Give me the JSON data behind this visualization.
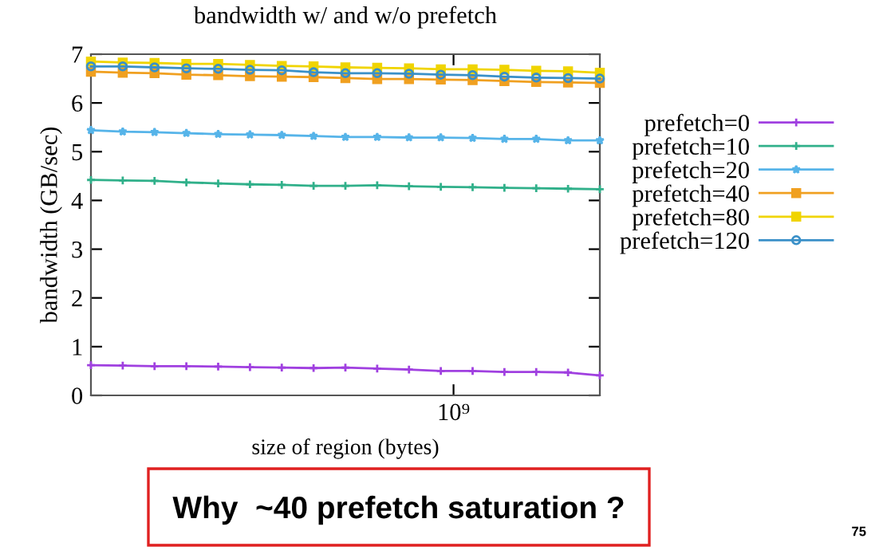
{
  "chart_data": {
    "type": "line",
    "title": "bandwidth w/ and w/o prefetch",
    "xlabel": "size of region (bytes)",
    "ylabel": "bandwidth (GB/sec)",
    "categories": [
      null,
      null,
      null,
      null,
      null,
      null,
      null,
      null,
      null,
      null,
      null,
      null,
      null,
      null,
      null,
      null,
      null
    ],
    "ylim": [
      0,
      7
    ],
    "yticks": [
      0,
      1,
      2,
      3,
      4,
      5,
      6,
      7
    ],
    "grid": false,
    "legend": "right",
    "line_style": "solid",
    "series": [
      {
        "name": "prefetch=0",
        "color": "#a040e0",
        "marker": "cross",
        "values": [
          0.62,
          0.61,
          0.6,
          0.6,
          0.59,
          0.58,
          0.57,
          0.56,
          0.57,
          0.55,
          0.53,
          0.5,
          0.5,
          0.48,
          0.48,
          0.47,
          0.41
        ]
      },
      {
        "name": "prefetch=10",
        "color": "#30b08a",
        "marker": "cross",
        "values": [
          4.42,
          4.41,
          4.4,
          4.37,
          4.35,
          4.33,
          4.32,
          4.3,
          4.3,
          4.31,
          4.29,
          4.28,
          4.27,
          4.26,
          4.25,
          4.24,
          4.23
        ]
      },
      {
        "name": "prefetch=20",
        "color": "#56b4e9",
        "marker": "star",
        "values": [
          5.44,
          5.41,
          5.4,
          5.38,
          5.36,
          5.35,
          5.34,
          5.32,
          5.3,
          5.3,
          5.29,
          5.29,
          5.28,
          5.26,
          5.26,
          5.23,
          5.23
        ]
      },
      {
        "name": "prefetch=40",
        "color": "#f0a020",
        "marker": "square",
        "values": [
          6.64,
          6.62,
          6.61,
          6.58,
          6.57,
          6.55,
          6.54,
          6.53,
          6.51,
          6.49,
          6.49,
          6.48,
          6.47,
          6.45,
          6.43,
          6.42,
          6.41
        ]
      },
      {
        "name": "prefetch=80",
        "color": "#f0d400",
        "marker": "square",
        "values": [
          6.85,
          6.83,
          6.82,
          6.8,
          6.8,
          6.78,
          6.76,
          6.75,
          6.73,
          6.72,
          6.71,
          6.69,
          6.69,
          6.68,
          6.66,
          6.65,
          6.62
        ]
      },
      {
        "name": "prefetch=120",
        "color": "#3a90c8",
        "marker": "circle",
        "values": [
          6.75,
          6.75,
          6.73,
          6.71,
          6.7,
          6.68,
          6.67,
          6.63,
          6.61,
          6.61,
          6.6,
          6.58,
          6.57,
          6.54,
          6.52,
          6.51,
          6.5
        ]
      }
    ],
    "annotations": [
      "Why  ~40 prefetch saturation ?",
      "75",
      "10⁹"
    ]
  }
}
